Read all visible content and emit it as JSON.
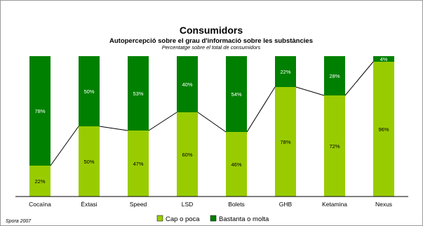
{
  "chart_data": {
    "type": "bar",
    "stacked": true,
    "title": "Consumidors",
    "subtitle": "Autopercepció sobre el grau d'informació sobre les substàncies",
    "note": "Percentatge sobre el total de consumidors",
    "categories": [
      "Cocaïna",
      "Èxtasi",
      "Speed",
      "LSD",
      "Bolets",
      "GHB",
      "Ketamina",
      "Nexus"
    ],
    "series": [
      {
        "name": "Cap o poca",
        "color": "#99cc00",
        "label_color": "#000000",
        "values": [
          22,
          50,
          47,
          60,
          46,
          78,
          72,
          96
        ],
        "labels": [
          "22%",
          "50%",
          "47%",
          "60%",
          "46%",
          "78%",
          "72%",
          "96%"
        ]
      },
      {
        "name": "Bastanta o molta",
        "color": "#008000",
        "label_color": "#ffffff",
        "values": [
          78,
          50,
          53,
          40,
          54,
          22,
          28,
          4
        ],
        "labels": [
          "78%",
          "50%",
          "53%",
          "40%",
          "54%",
          "22%",
          "28%",
          "4%"
        ]
      }
    ],
    "connector_line": "Cap o poca",
    "ylim": [
      0,
      100
    ],
    "legend_position": "bottom",
    "grid": false
  },
  "source": "Spora 2007"
}
